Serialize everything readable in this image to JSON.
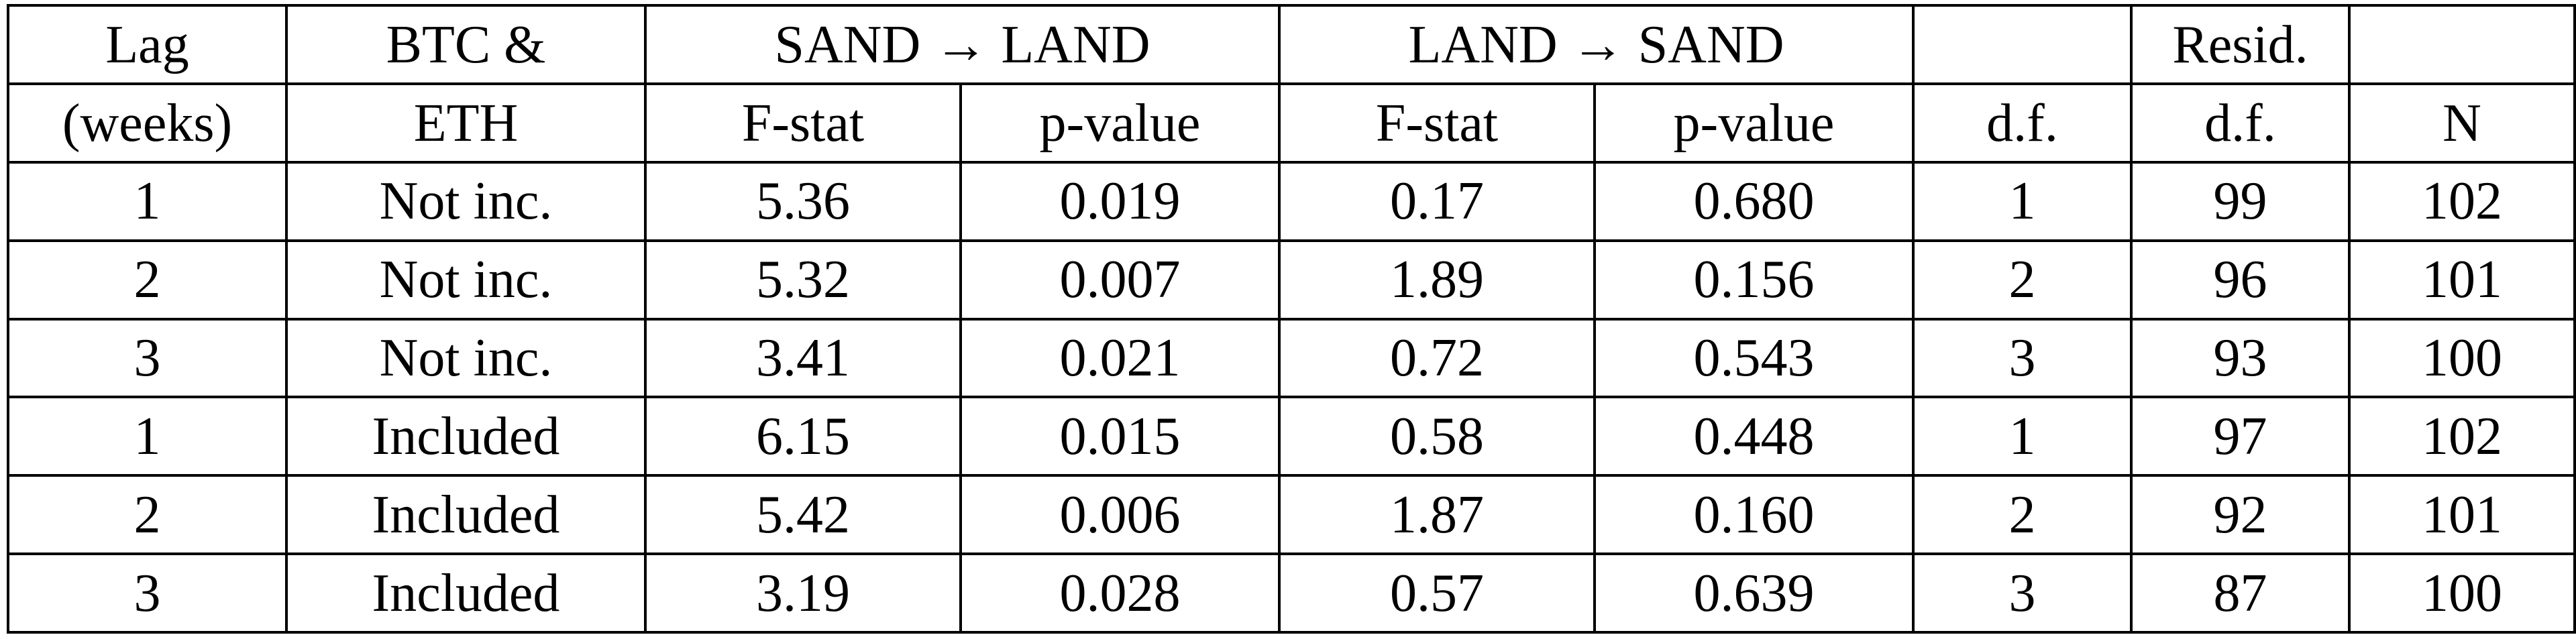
{
  "table": {
    "header_row1": {
      "lag": "Lag",
      "btc_eth": "BTC &",
      "sand_to_land": "SAND → LAND",
      "land_to_sand": "LAND → SAND",
      "df": "",
      "resid": "Resid.",
      "n": ""
    },
    "header_row2": {
      "lag": "(weeks)",
      "btc_eth": "ETH",
      "f_stat_1": "F-stat",
      "p_value_1": "p-value",
      "f_stat_2": "F-stat",
      "p_value_2": "p-value",
      "df": "d.f.",
      "resid": "d.f.",
      "n": "N"
    },
    "rows": [
      {
        "lag": "1",
        "btc_eth": "Not inc.",
        "f1": "5.36",
        "p1": "0.019",
        "f2": "0.17",
        "p2": "0.680",
        "df": "1",
        "resid": "99",
        "n": "102"
      },
      {
        "lag": "2",
        "btc_eth": "Not inc.",
        "f1": "5.32",
        "p1": "0.007",
        "f2": "1.89",
        "p2": "0.156",
        "df": "2",
        "resid": "96",
        "n": "101"
      },
      {
        "lag": "3",
        "btc_eth": "Not inc.",
        "f1": "3.41",
        "p1": "0.021",
        "f2": "0.72",
        "p2": "0.543",
        "df": "3",
        "resid": "93",
        "n": "100"
      },
      {
        "lag": "1",
        "btc_eth": "Included",
        "f1": "6.15",
        "p1": "0.015",
        "f2": "0.58",
        "p2": "0.448",
        "df": "1",
        "resid": "97",
        "n": "102"
      },
      {
        "lag": "2",
        "btc_eth": "Included",
        "f1": "5.42",
        "p1": "0.006",
        "f2": "1.87",
        "p2": "0.160",
        "df": "2",
        "resid": "92",
        "n": "101"
      },
      {
        "lag": "3",
        "btc_eth": "Included",
        "f1": "3.19",
        "p1": "0.028",
        "f2": "0.57",
        "p2": "0.639",
        "df": "3",
        "resid": "87",
        "n": "100"
      }
    ]
  }
}
